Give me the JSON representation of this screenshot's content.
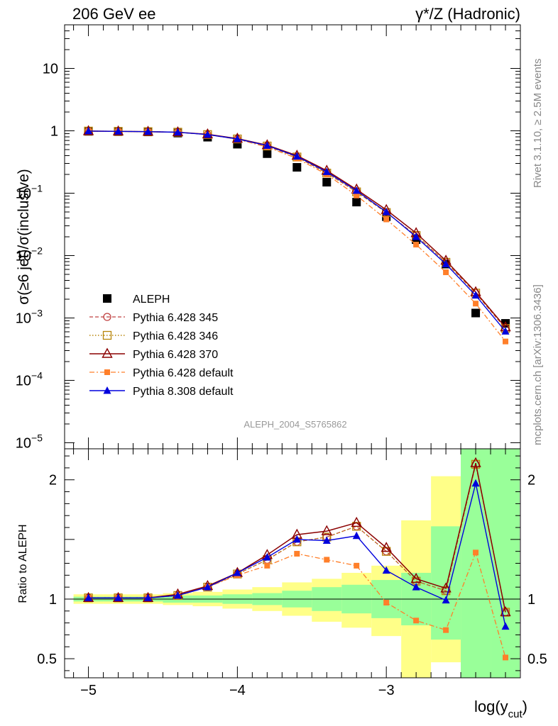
{
  "header": {
    "left": "206 GeV ee",
    "right_main": "γ*/Z (Hadronic)"
  },
  "side_labels": {
    "rivet": "Rivet 3.1.10, ≥ 2.5M events",
    "mcplots": "mcplots.cern.ch [arXiv:1306.3436]"
  },
  "analysis_label": "ALEPH_2004_S5765862",
  "colors": {
    "aleph": "#000000",
    "p345": "#c04040",
    "p346": "#b8860b",
    "p370": "#8b0000",
    "p6def": "#ff7f2a",
    "p8": "#0000dd",
    "band_yellow": "#ffff88",
    "band_green": "#99ff99"
  },
  "chart_data": [
    {
      "type": "line",
      "panel": "main",
      "ylabel_parts": [
        "σ(≥6 jet)/σ(inclusive)"
      ],
      "yscale": "log",
      "xlim": [
        -5.16,
        -2.1
      ],
      "ylim": [
        8e-06,
        50
      ],
      "y_ticks": [
        {
          "v": 10,
          "t": "10"
        },
        {
          "v": 1,
          "t": "1"
        },
        {
          "v": 0.1,
          "t": "10",
          "sup": "−1"
        },
        {
          "v": 0.01,
          "t": "10",
          "sup": "−2"
        },
        {
          "v": 0.001,
          "t": "10",
          "sup": "−3"
        },
        {
          "v": 0.0001,
          "t": "10",
          "sup": "−4"
        },
        {
          "v": 1e-05,
          "t": "10",
          "sup": "−5"
        }
      ],
      "x": [
        -5.0,
        -4.8,
        -4.6,
        -4.4,
        -4.2,
        -4.0,
        -3.8,
        -3.6,
        -3.4,
        -3.2,
        -3.0,
        -2.8,
        -2.6,
        -2.4,
        -2.2
      ],
      "series": [
        {
          "name": "ALEPH",
          "key": "aleph",
          "values": [
            0.98,
            0.97,
            0.96,
            0.92,
            0.79,
            0.61,
            0.43,
            0.26,
            0.15,
            0.072,
            0.042,
            0.018,
            0.0073,
            0.0012,
            0.00082
          ]
        },
        {
          "name": "Pythia 6.428 345",
          "key": "p345",
          "values": [
            0.99,
            0.98,
            0.97,
            0.95,
            0.87,
            0.74,
            0.57,
            0.38,
            0.21,
            0.105,
            0.049,
            0.021,
            0.0078,
            0.0025,
            0.00068
          ]
        },
        {
          "name": "Pythia 6.428 346",
          "key": "p346",
          "values": [
            0.99,
            0.98,
            0.97,
            0.95,
            0.87,
            0.74,
            0.57,
            0.38,
            0.21,
            0.105,
            0.049,
            0.021,
            0.0078,
            0.0025,
            0.00068
          ]
        },
        {
          "name": "Pythia 6.428 370",
          "key": "p370",
          "values": [
            0.99,
            0.98,
            0.97,
            0.95,
            0.88,
            0.75,
            0.59,
            0.4,
            0.23,
            0.115,
            0.054,
            0.023,
            0.0083,
            0.0026,
            0.00071
          ]
        },
        {
          "name": "Pythia 6.428 default",
          "key": "p6def",
          "values": [
            0.99,
            0.98,
            0.97,
            0.95,
            0.87,
            0.73,
            0.55,
            0.36,
            0.2,
            0.092,
            0.038,
            0.015,
            0.0054,
            0.0017,
            0.00042
          ]
        },
        {
          "name": "Pythia 8.308 default",
          "key": "p8",
          "values": [
            0.99,
            0.98,
            0.97,
            0.95,
            0.87,
            0.74,
            0.58,
            0.39,
            0.22,
            0.11,
            0.05,
            0.02,
            0.0073,
            0.0023,
            0.00061
          ]
        }
      ],
      "legend": {
        "placement": "middle-left"
      }
    },
    {
      "type": "line",
      "panel": "ratio",
      "xlabel": "log(y",
      "xlabel_sub": "cut",
      "xlabel_end": ")",
      "ylabel": "Ratio to ALEPH",
      "xlim": [
        -5.16,
        -2.1
      ],
      "ylim": [
        0.34,
        2.26
      ],
      "x_ticks": [
        {
          "v": -5,
          "t": "−5"
        },
        {
          "v": -4,
          "t": "−4"
        },
        {
          "v": -3,
          "t": "−3"
        }
      ],
      "y_ticks": [
        {
          "v": 2,
          "t": "2"
        },
        {
          "v": 1,
          "t": "1"
        },
        {
          "v": 0.5,
          "t": "0.5"
        }
      ],
      "x": [
        -5.0,
        -4.8,
        -4.6,
        -4.4,
        -4.2,
        -4.0,
        -3.8,
        -3.6,
        -3.4,
        -3.2,
        -3.0,
        -2.8,
        -2.6,
        -2.4,
        -2.2
      ],
      "band_yellow": {
        "lo": [
          0.96,
          0.96,
          0.96,
          0.95,
          0.94,
          0.92,
          0.9,
          0.86,
          0.81,
          0.76,
          0.69,
          0.34,
          0.47,
          0.34,
          0.34
        ],
        "hi": [
          1.04,
          1.04,
          1.04,
          1.05,
          1.06,
          1.08,
          1.1,
          1.14,
          1.17,
          1.22,
          1.28,
          1.66,
          2.03,
          2.26,
          2.26
        ]
      },
      "band_green": {
        "lo": [
          0.98,
          0.98,
          0.98,
          0.97,
          0.97,
          0.96,
          0.95,
          0.93,
          0.9,
          0.88,
          0.84,
          0.78,
          0.66,
          0.34,
          0.34
        ],
        "hi": [
          1.02,
          1.02,
          1.02,
          1.03,
          1.03,
          1.04,
          1.05,
          1.07,
          1.1,
          1.12,
          1.16,
          1.22,
          1.61,
          2.26,
          2.26
        ]
      },
      "series": [
        {
          "key": "p345",
          "values": [
            1.01,
            1.01,
            1.01,
            1.03,
            1.1,
            1.21,
            1.33,
            1.48,
            1.52,
            1.61,
            1.4,
            1.15,
            1.07,
            2.13,
            0.89
          ]
        },
        {
          "key": "p346",
          "values": [
            1.01,
            1.01,
            1.01,
            1.03,
            1.1,
            1.21,
            1.33,
            1.48,
            1.52,
            1.61,
            1.4,
            1.15,
            1.07,
            2.13,
            0.89
          ]
        },
        {
          "key": "p370",
          "values": [
            1.01,
            1.01,
            1.01,
            1.04,
            1.11,
            1.22,
            1.37,
            1.54,
            1.57,
            1.64,
            1.43,
            1.17,
            1.09,
            2.14,
            0.89
          ]
        },
        {
          "key": "p6def",
          "values": [
            1.01,
            1.01,
            1.01,
            1.03,
            1.1,
            1.2,
            1.28,
            1.38,
            1.33,
            1.28,
            0.97,
            0.82,
            0.74,
            1.39,
            0.51
          ]
        },
        {
          "key": "p8",
          "values": [
            1.01,
            1.01,
            1.01,
            1.03,
            1.1,
            1.22,
            1.35,
            1.5,
            1.49,
            1.53,
            1.24,
            1.1,
            0.99,
            1.97,
            0.77
          ]
        }
      ]
    }
  ]
}
